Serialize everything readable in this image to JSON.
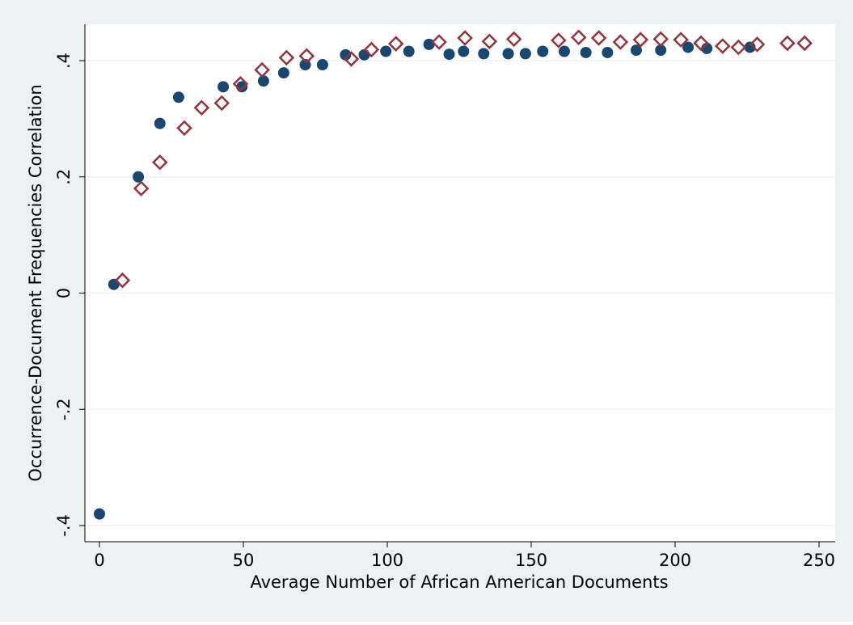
{
  "chart_data": {
    "type": "scatter",
    "x_label": "Average Number of African American Documents",
    "y_label": "Occurrence-Document Frequencies Correlation",
    "xlim": [
      0,
      250
    ],
    "xticks": [
      0,
      50,
      100,
      150,
      200,
      250
    ],
    "ylim": [
      -0.4,
      0.4
    ],
    "yticks": [
      {
        "value": -0.4,
        "label": "-.4"
      },
      {
        "value": -0.2,
        "label": "-.2"
      },
      0,
      {
        "value": 0.2,
        "label": ".2"
      },
      {
        "value": 0.4,
        "label": ".4"
      }
    ],
    "grid": true,
    "series": [
      {
        "color": "#1a476f",
        "marker": "circle",
        "x": [
          0,
          5,
          13.5,
          21,
          27.5,
          43,
          49.5,
          57,
          64,
          71.5,
          77.5,
          85.5,
          92,
          99.5,
          107.5,
          114.5,
          121.5,
          126.5,
          133.5,
          142,
          148,
          154,
          161.5,
          169,
          176.5,
          186.5,
          195,
          204.5,
          211,
          226
        ],
        "values": [
          -0.38,
          0.015,
          0.2,
          0.292,
          0.337,
          0.355,
          0.355,
          0.365,
          0.379,
          0.393,
          0.393,
          0.41,
          0.41,
          0.416,
          0.416,
          0.428,
          0.411,
          0.416,
          0.412,
          0.412,
          0.412,
          0.416,
          0.416,
          0.414,
          0.414,
          0.418,
          0.418,
          0.423,
          0.421,
          0.423
        ]
      },
      {
        "color": "#90353b",
        "marker": "diamond",
        "x": [
          8,
          14.5,
          21,
          29.5,
          35.5,
          42.5,
          49,
          56.5,
          65,
          72,
          87.5,
          94.5,
          103,
          118,
          127,
          135.5,
          144,
          159.5,
          166.5,
          173.5,
          181,
          188,
          195,
          202,
          209,
          216.5,
          222,
          228.5,
          239,
          245
        ],
        "values": [
          0.022,
          0.18,
          0.225,
          0.284,
          0.319,
          0.327,
          0.36,
          0.384,
          0.405,
          0.408,
          0.403,
          0.419,
          0.429,
          0.432,
          0.439,
          0.433,
          0.437,
          0.435,
          0.44,
          0.439,
          0.432,
          0.436,
          0.437,
          0.436,
          0.43,
          0.425,
          0.423,
          0.428,
          0.43,
          0.43
        ]
      }
    ]
  }
}
